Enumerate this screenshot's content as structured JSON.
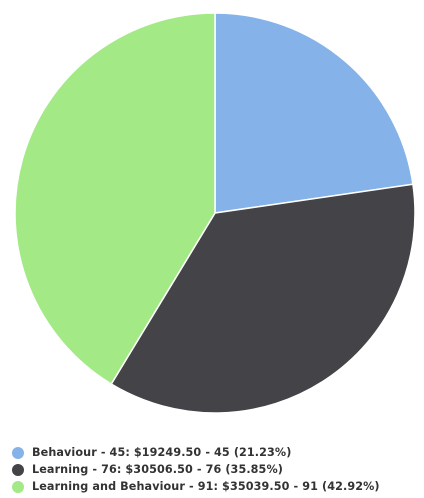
{
  "chart_data": {
    "type": "pie",
    "title": "",
    "slices": [
      {
        "name": "Behaviour",
        "count": 45,
        "value": 19249.5,
        "percent": 21.23,
        "color": "#85B2E8",
        "label": "Behaviour - 45: $19249.50 - 45 (21.23%)"
      },
      {
        "name": "Learning",
        "count": 76,
        "value": 30506.5,
        "percent": 35.85,
        "color": "#434348",
        "label": "Learning - 76: $30506.50 - 76 (35.85%)"
      },
      {
        "name": "Learning and Behaviour",
        "count": 91,
        "value": 35039.5,
        "percent": 42.92,
        "color": "#A3EA86",
        "label": "Learning and Behaviour - 91: $35039.50 - 91 (42.92%)"
      }
    ],
    "legend_position": "bottom-left"
  }
}
